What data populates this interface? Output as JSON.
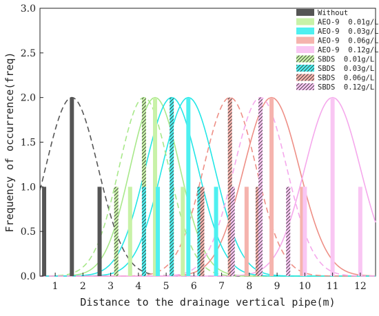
{
  "chart_data": {
    "type": "bar",
    "xlabel": "Distance to the drainage vertical pipe(m)",
    "ylabel": "Frequency of occurrence(freq)",
    "xlim": [
      0.45,
      12.55
    ],
    "ylim": [
      0,
      3.0
    ],
    "xticks": [
      1,
      2,
      3,
      4,
      5,
      6,
      7,
      8,
      9,
      10,
      11,
      12
    ],
    "yticks": [
      0.0,
      0.5,
      1.0,
      1.5,
      2.0,
      2.5,
      3.0
    ],
    "xtick_labels": [
      "1",
      "2",
      "3",
      "4",
      "5",
      "6",
      "7",
      "8",
      "9",
      "10",
      "11",
      "12"
    ],
    "ytick_labels": [
      "0.0",
      "0.5",
      "1.0",
      "1.5",
      "2.0",
      "2.5",
      "3.0"
    ],
    "legend_position": "top-right",
    "series": [
      {
        "name": "Without",
        "color": "#555555",
        "hatch": false,
        "curve": "dashed",
        "mu": 1.6,
        "sigma": 0.95,
        "peak": 2.0,
        "bars": [
          {
            "x": 0.6,
            "y": 1.0
          },
          {
            "x": 1.6,
            "y": 2.0
          },
          {
            "x": 2.6,
            "y": 1.0
          }
        ]
      },
      {
        "name": "AEO-9  0.01g/L",
        "color": "#c8f2a8",
        "curve_color": "#a8e88a",
        "hatch": false,
        "curve": "solid",
        "mu": 4.6,
        "sigma": 0.9,
        "peak": 2.0,
        "bars": [
          {
            "x": 3.7,
            "y": 1.0
          },
          {
            "x": 4.6,
            "y": 2.0
          },
          {
            "x": 5.6,
            "y": 1.0
          }
        ]
      },
      {
        "name": "AEO-9  0.03g/L",
        "color": "#4ef0f0",
        "curve_color": "#22e6e6",
        "hatch": false,
        "curve": "solid",
        "mu": 5.8,
        "sigma": 0.95,
        "peak": 2.0,
        "bars": [
          {
            "x": 4.7,
            "y": 1.0
          },
          {
            "x": 5.8,
            "y": 2.0
          },
          {
            "x": 6.8,
            "y": 1.0
          }
        ]
      },
      {
        "name": "AEO-9  0.06g/L",
        "color": "#f5b3ad",
        "curve_color": "#ee8f86",
        "hatch": false,
        "curve": "solid",
        "mu": 8.8,
        "sigma": 1.0,
        "peak": 2.0,
        "bars": [
          {
            "x": 7.9,
            "y": 1.0
          },
          {
            "x": 8.8,
            "y": 2.0
          },
          {
            "x": 9.9,
            "y": 1.0
          }
        ]
      },
      {
        "name": "AEO-9  0.12g/L",
        "color": "#f9c6f3",
        "curve_color": "#f5a8ec",
        "hatch": false,
        "curve": "solid",
        "mu": 11.0,
        "sigma": 1.0,
        "peak": 2.0,
        "bars": [
          {
            "x": 10.0,
            "y": 1.0
          },
          {
            "x": 11.0,
            "y": 2.0
          },
          {
            "x": 12.0,
            "y": 1.0
          }
        ]
      },
      {
        "name": "SBDS  0.01g/L",
        "color": "#c8f2a8",
        "curve_color": "#a8e88a",
        "hatch": true,
        "curve": "dashed",
        "mu": 4.2,
        "sigma": 0.9,
        "peak": 2.0,
        "bars": [
          {
            "x": 3.2,
            "y": 1.0
          },
          {
            "x": 4.2,
            "y": 2.0
          },
          {
            "x": 5.2,
            "y": 1.0
          }
        ]
      },
      {
        "name": "SBDS  0.03g/L",
        "color": "#4ef0f0",
        "curve_color": "#22e6e6",
        "hatch": true,
        "curve": "solid",
        "mu": 5.2,
        "sigma": 0.95,
        "peak": 2.0,
        "bars": [
          {
            "x": 4.2,
            "y": 1.0
          },
          {
            "x": 5.2,
            "y": 2.0
          },
          {
            "x": 6.2,
            "y": 1.0
          }
        ]
      },
      {
        "name": "SBDS  0.06g/L",
        "color": "#f5b3ad",
        "curve_color": "#ee8f86",
        "hatch": true,
        "curve": "dashed",
        "mu": 7.3,
        "sigma": 0.95,
        "peak": 2.0,
        "bars": [
          {
            "x": 6.3,
            "y": 1.0
          },
          {
            "x": 7.3,
            "y": 2.0
          },
          {
            "x": 8.3,
            "y": 1.0
          }
        ]
      },
      {
        "name": "SBDS  0.12g/L",
        "color": "#f9c6f3",
        "curve_color": "#f5a8ec",
        "hatch": true,
        "curve": "dashed",
        "mu": 8.4,
        "sigma": 0.95,
        "peak": 2.0,
        "bars": [
          {
            "x": 7.4,
            "y": 1.0
          },
          {
            "x": 8.4,
            "y": 2.0
          },
          {
            "x": 9.4,
            "y": 1.0
          }
        ]
      }
    ]
  }
}
